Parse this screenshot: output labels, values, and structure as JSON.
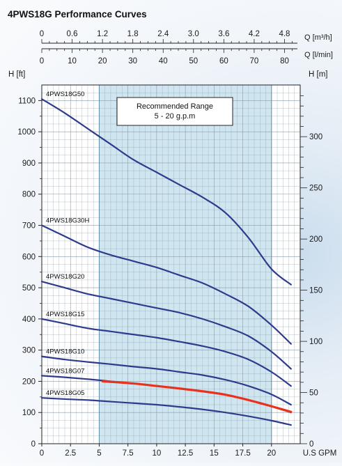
{
  "chart_data": {
    "type": "line",
    "title": "4PWS18G Performance Curves",
    "x_axis": {
      "label": "U.S GPM",
      "min": 0,
      "max": 22.5,
      "ticks": [
        0,
        2.5,
        5,
        7.5,
        10,
        12.5,
        15,
        17.5,
        20
      ]
    },
    "y_axis_left": {
      "label": "H [ft]",
      "min": 0,
      "max": 1150,
      "ticks": [
        0,
        100,
        200,
        300,
        400,
        500,
        600,
        700,
        800,
        900,
        1000,
        1100
      ]
    },
    "y_axis_right": {
      "label": "H [m]",
      "ticks": [
        0,
        50,
        100,
        150,
        200,
        250,
        300
      ]
    },
    "secondary_x_axes": [
      {
        "label": "Q [m³/h]",
        "ticks": [
          "0",
          "0.6",
          "1.2",
          "1.8",
          "2.4",
          "3.0",
          "3.6",
          "4.2",
          "4.8"
        ]
      },
      {
        "label": "Q [l/min]",
        "ticks": [
          "0",
          "10",
          "20",
          "30",
          "40",
          "50",
          "60",
          "70",
          "80"
        ]
      }
    ],
    "recommended_range": {
      "x_start": 5,
      "x_end": 20,
      "label_line1": "Recommended Range",
      "label_line2": "5 - 20 g.p.m"
    },
    "grid": true,
    "series": [
      {
        "name": "4PWS18G50",
        "color": "#2e3a8c",
        "points": [
          [
            0,
            1105
          ],
          [
            2,
            1060
          ],
          [
            4,
            1010
          ],
          [
            6,
            960
          ],
          [
            8,
            910
          ],
          [
            10,
            870
          ],
          [
            12,
            830
          ],
          [
            14,
            790
          ],
          [
            16,
            740
          ],
          [
            18,
            660
          ],
          [
            20,
            560
          ],
          [
            21.7,
            510
          ]
        ]
      },
      {
        "name": "4PWS18G30H",
        "color": "#2e3a8c",
        "points": [
          [
            0,
            700
          ],
          [
            2,
            665
          ],
          [
            4,
            630
          ],
          [
            6,
            605
          ],
          [
            8,
            585
          ],
          [
            10,
            565
          ],
          [
            12,
            540
          ],
          [
            14,
            515
          ],
          [
            16,
            480
          ],
          [
            18,
            440
          ],
          [
            20,
            380
          ],
          [
            21.7,
            320
          ]
        ]
      },
      {
        "name": "4PWS18G20",
        "color": "#2e3a8c",
        "points": [
          [
            0,
            520
          ],
          [
            2,
            500
          ],
          [
            4,
            480
          ],
          [
            6,
            465
          ],
          [
            8,
            450
          ],
          [
            10,
            435
          ],
          [
            12,
            420
          ],
          [
            14,
            400
          ],
          [
            16,
            375
          ],
          [
            18,
            345
          ],
          [
            20,
            295
          ],
          [
            21.7,
            240
          ]
        ]
      },
      {
        "name": "4PWS18G15",
        "color": "#2e3a8c",
        "points": [
          [
            0,
            400
          ],
          [
            2,
            385
          ],
          [
            4,
            370
          ],
          [
            6,
            360
          ],
          [
            8,
            350
          ],
          [
            10,
            340
          ],
          [
            12,
            327
          ],
          [
            14,
            313
          ],
          [
            16,
            295
          ],
          [
            18,
            270
          ],
          [
            20,
            230
          ],
          [
            21.7,
            185
          ]
        ]
      },
      {
        "name": "4PWS18G10",
        "color": "#2e3a8c",
        "points": [
          [
            0,
            280
          ],
          [
            2,
            270
          ],
          [
            4,
            262
          ],
          [
            6,
            255
          ],
          [
            8,
            247
          ],
          [
            10,
            240
          ],
          [
            12,
            230
          ],
          [
            14,
            220
          ],
          [
            16,
            205
          ],
          [
            18,
            185
          ],
          [
            20,
            158
          ],
          [
            21.7,
            125
          ]
        ]
      },
      {
        "name": "4PWS18G07",
        "color": "#2e3a8c",
        "points": [
          [
            0,
            218
          ],
          [
            2,
            213
          ],
          [
            4,
            207
          ],
          [
            6,
            200
          ],
          [
            8,
            193
          ],
          [
            10,
            185
          ],
          [
            12,
            177
          ],
          [
            14,
            168
          ],
          [
            16,
            157
          ],
          [
            18,
            140
          ],
          [
            20,
            120
          ],
          [
            21.7,
            100
          ]
        ]
      },
      {
        "name": "",
        "color": "#e8321e",
        "points": [
          [
            5.3,
            200
          ],
          [
            8,
            193
          ],
          [
            10,
            185
          ],
          [
            12,
            177
          ],
          [
            14,
            168
          ],
          [
            16,
            157
          ],
          [
            18,
            140
          ],
          [
            20,
            120
          ],
          [
            21.7,
            102
          ]
        ]
      },
      {
        "name": "4PWS18G05",
        "color": "#2e3a8c",
        "points": [
          [
            0,
            147
          ],
          [
            2,
            143
          ],
          [
            4,
            140
          ],
          [
            6,
            135
          ],
          [
            8,
            130
          ],
          [
            10,
            125
          ],
          [
            12,
            118
          ],
          [
            14,
            110
          ],
          [
            16,
            100
          ],
          [
            18,
            88
          ],
          [
            20,
            74
          ],
          [
            21.7,
            60
          ]
        ]
      }
    ]
  }
}
